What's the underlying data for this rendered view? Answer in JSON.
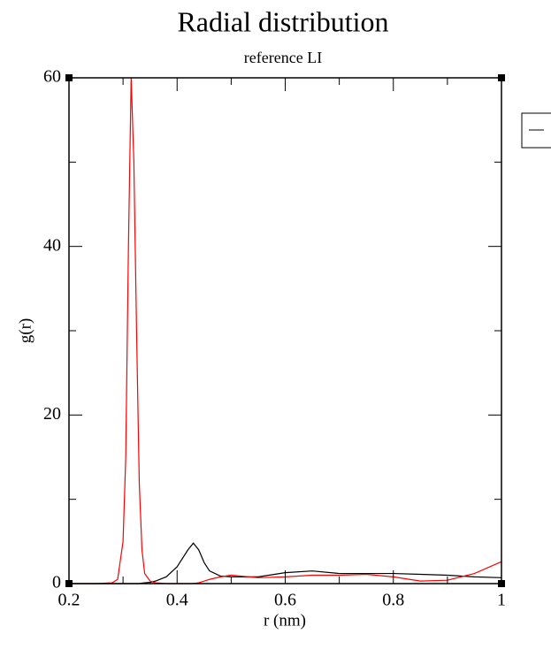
{
  "chart_data": {
    "type": "line",
    "title": "Radial distribution",
    "subtitle": "reference LI",
    "x_label": "r (nm)",
    "y_label": "g(r)",
    "x": [
      0.2,
      0.25,
      0.28,
      0.29,
      0.3,
      0.305,
      0.31,
      0.315,
      0.32,
      0.325,
      0.33,
      0.335,
      0.34,
      0.35,
      0.36,
      0.38,
      0.4,
      0.42,
      0.43,
      0.44,
      0.45,
      0.46,
      0.48,
      0.5,
      0.55,
      0.6,
      0.65,
      0.7,
      0.75,
      0.8,
      0.85,
      0.9,
      0.95,
      1
    ],
    "series": [
      {
        "color": "#000000",
        "values": [
          0,
          0,
          0,
          0,
          0,
          0,
          0,
          0,
          0,
          0,
          0,
          0.05,
          0.1,
          0.15,
          0.3,
          0.8,
          2,
          4,
          4.8,
          4,
          2.5,
          1.5,
          0.9,
          0.8,
          0.8,
          1.3,
          1.5,
          1.2,
          1.2,
          1.2,
          1.1,
          1,
          0.8,
          0.7
        ]
      },
      {
        "color": "#ff0000",
        "values": [
          0,
          0,
          0.1,
          0.5,
          5,
          15,
          40,
          60,
          50,
          30,
          12,
          4,
          1.2,
          0.3,
          0.1,
          0,
          0,
          0,
          0,
          0.1,
          0.3,
          0.5,
          0.8,
          1,
          0.7,
          0.8,
          1,
          1,
          1.1,
          0.8,
          0.3,
          0.4,
          1.2,
          2.6
        ]
      }
    ],
    "xlim": [
      0.2,
      1
    ],
    "xticks": [
      0.2,
      0.4,
      0.6,
      0.8,
      1
    ],
    "ylim": [
      0,
      60
    ],
    "yticks": [
      0,
      20,
      40,
      60
    ]
  }
}
